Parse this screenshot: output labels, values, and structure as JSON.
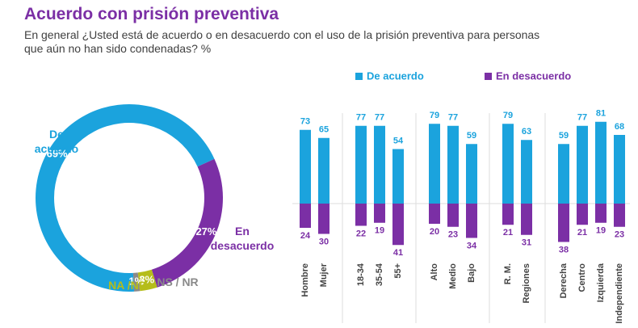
{
  "title": "Acuerdo con prisión preventiva",
  "subtitle": "En general ¿Usted está de acuerdo o en desacuerdo con el uso de la prisión preventiva para personas que aún no han sido condenadas? %",
  "chart_data": [
    {
      "type": "pie",
      "categories": [
        "De acuerdo",
        "En desacuerdo",
        "NA /ND",
        "NS / NR"
      ],
      "values": [
        69,
        27,
        3,
        1
      ],
      "value_labels": [
        "69%",
        "27%",
        "3%",
        "1%"
      ],
      "colors": [
        "#1ba3dd",
        "#7b2fa5",
        "#b5bd1a",
        "#8a8a8a"
      ]
    },
    {
      "type": "bar",
      "categories": [
        "Hombre",
        "Mujer",
        "18-34",
        "35-54",
        "55+",
        "Alto",
        "Medio",
        "Bajo",
        "R. M.",
        "Regiones",
        "Derecha",
        "Centro",
        "Izquierda",
        "Independiente"
      ],
      "series": [
        {
          "name": "De acuerdo",
          "color": "#1ba3dd",
          "values": [
            73,
            65,
            77,
            77,
            54,
            79,
            77,
            59,
            79,
            63,
            59,
            77,
            81,
            68
          ]
        },
        {
          "name": "En desacuerdo",
          "color": "#7b2fa5",
          "values": [
            24,
            30,
            22,
            19,
            41,
            20,
            23,
            34,
            21,
            31,
            38,
            21,
            19,
            23
          ]
        }
      ],
      "legend": "top"
    }
  ]
}
